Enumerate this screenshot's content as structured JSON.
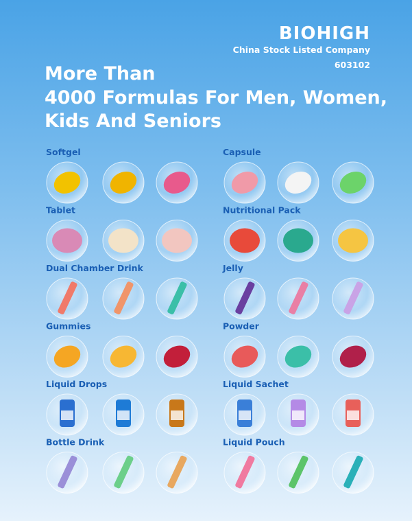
{
  "header": {
    "brand": "BIOHIGH",
    "tagline": "China Stock Listed Company",
    "stock_code": "603102"
  },
  "headline": {
    "lines": [
      "More Than",
      "4000 Formulas For Men, Women,",
      "Kids And Seniors"
    ]
  },
  "categories": [
    {
      "label": "Softgel"
    },
    {
      "label": "Capsule"
    },
    {
      "label": "Tablet"
    },
    {
      "label": "Nutritional Pack"
    },
    {
      "label": "Dual Chamber Drink"
    },
    {
      "label": "Jelly"
    },
    {
      "label": "Gummies"
    },
    {
      "label": "Powder"
    },
    {
      "label": "Liquid Drops"
    },
    {
      "label": "Liquid Sachet"
    },
    {
      "label": "Bottle Drink"
    },
    {
      "label": "Liquid Pouch"
    }
  ]
}
